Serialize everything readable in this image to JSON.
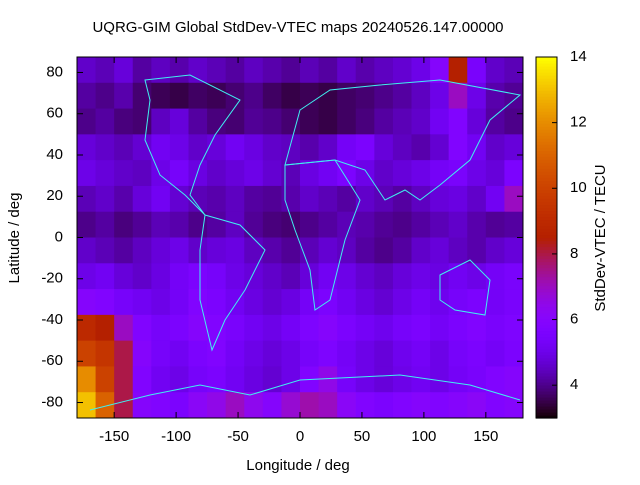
{
  "chart_data": {
    "type": "heatmap",
    "title": "UQRG-GIM Global StdDev-VTEC maps 20240526.147.00000",
    "xlabel": "Longitude / deg",
    "ylabel": "Latitude / deg",
    "zlabel": "StdDev-VTEC / TECU",
    "xlim": [
      -180,
      180
    ],
    "ylim": [
      -87.5,
      87.5
    ],
    "zlim": [
      3,
      14
    ],
    "xticks": [
      -150,
      -100,
      -50,
      0,
      50,
      100,
      150
    ],
    "yticks": [
      -80,
      -60,
      -40,
      -20,
      0,
      20,
      40,
      60,
      80
    ],
    "zticks": [
      4,
      6,
      8,
      10,
      12,
      14
    ],
    "x": [
      -172.5,
      -157.5,
      -142.5,
      -127.5,
      -112.5,
      -97.5,
      -82.5,
      -67.5,
      -52.5,
      -37.5,
      -22.5,
      -7.5,
      7.5,
      22.5,
      37.5,
      52.5,
      67.5,
      82.5,
      97.5,
      112.5,
      127.5,
      142.5,
      157.5,
      172.5
    ],
    "y": [
      81.25,
      68.75,
      56.25,
      43.75,
      31.25,
      18.75,
      6.25,
      -6.25,
      -18.75,
      -31.25,
      -43.75,
      -56.25,
      -68.75,
      -81.25
    ],
    "z": [
      [
        4.6,
        4.4,
        4.8,
        4.2,
        4.5,
        4.3,
        4.6,
        4.4,
        4.2,
        4.5,
        4.3,
        4.1,
        4.4,
        4.2,
        4.6,
        4.3,
        4.5,
        4.7,
        5.0,
        6.0,
        8.5,
        5.5,
        4.6,
        4.4
      ],
      [
        4.2,
        4.0,
        4.3,
        3.8,
        3.6,
        3.5,
        3.7,
        3.6,
        3.8,
        4.0,
        3.7,
        3.5,
        3.6,
        3.5,
        3.7,
        3.8,
        4.0,
        4.2,
        4.5,
        5.0,
        7.0,
        5.0,
        4.3,
        4.1
      ],
      [
        4.0,
        4.2,
        3.9,
        3.8,
        4.5,
        4.8,
        4.2,
        3.9,
        3.8,
        4.1,
        4.0,
        3.8,
        3.6,
        3.5,
        3.7,
        3.9,
        4.2,
        4.4,
        4.6,
        5.2,
        5.8,
        4.8,
        4.2,
        4.0
      ],
      [
        4.8,
        4.6,
        4.4,
        4.7,
        5.2,
        5.0,
        4.6,
        4.8,
        5.2,
        4.9,
        4.6,
        4.5,
        4.3,
        4.6,
        5.3,
        5.6,
        4.8,
        4.5,
        4.3,
        4.7,
        5.8,
        5.2,
        4.6,
        4.8
      ],
      [
        5.0,
        4.8,
        4.6,
        4.5,
        5.0,
        5.4,
        4.9,
        4.6,
        4.8,
        5.0,
        4.7,
        4.4,
        4.9,
        5.2,
        5.6,
        5.0,
        4.6,
        4.8,
        5.0,
        5.3,
        5.5,
        5.0,
        4.8,
        5.6
      ],
      [
        4.4,
        4.6,
        4.3,
        4.8,
        5.2,
        4.7,
        4.4,
        4.3,
        4.5,
        4.2,
        4.1,
        4.3,
        4.6,
        4.4,
        4.2,
        4.6,
        4.4,
        4.2,
        4.5,
        4.8,
        4.9,
        4.6,
        5.2,
        7.0
      ],
      [
        4.0,
        4.2,
        3.9,
        4.1,
        4.4,
        4.3,
        4.0,
        4.2,
        4.5,
        4.1,
        3.9,
        3.8,
        4.0,
        4.2,
        4.4,
        4.3,
        4.1,
        4.0,
        4.2,
        4.4,
        4.6,
        4.3,
        4.1,
        4.2
      ],
      [
        4.6,
        4.4,
        4.2,
        4.5,
        4.8,
        5.0,
        4.6,
        4.8,
        4.9,
        4.5,
        4.3,
        4.1,
        4.4,
        4.7,
        4.5,
        4.2,
        4.0,
        4.2,
        4.6,
        4.8,
        4.5,
        4.3,
        4.6,
        4.8
      ],
      [
        5.0,
        5.2,
        4.8,
        4.6,
        4.9,
        5.3,
        5.6,
        5.4,
        5.0,
        4.8,
        4.6,
        4.4,
        4.8,
        5.2,
        5.0,
        4.7,
        4.5,
        4.8,
        5.0,
        4.9,
        5.2,
        5.0,
        5.3,
        5.5
      ],
      [
        6.0,
        5.8,
        5.4,
        5.2,
        5.0,
        5.3,
        5.8,
        5.6,
        5.2,
        4.9,
        4.7,
        4.9,
        5.3,
        5.6,
        5.2,
        4.9,
        4.7,
        5.0,
        5.3,
        5.1,
        5.4,
        5.6,
        5.3,
        5.5
      ],
      [
        9.0,
        8.5,
        7.0,
        5.8,
        5.4,
        5.6,
        6.0,
        5.8,
        5.5,
        5.2,
        5.0,
        5.3,
        5.7,
        6.0,
        5.6,
        5.3,
        5.1,
        5.4,
        5.6,
        5.3,
        5.6,
        5.8,
        5.5,
        5.7
      ],
      [
        10.0,
        9.5,
        8.0,
        6.0,
        5.4,
        5.2,
        5.6,
        5.8,
        5.3,
        5.0,
        4.8,
        5.0,
        5.4,
        5.7,
        5.3,
        5.0,
        4.8,
        5.1,
        5.3,
        5.0,
        5.4,
        5.6,
        5.3,
        5.6
      ],
      [
        12.0,
        10.0,
        8.0,
        5.8,
        5.2,
        5.0,
        5.4,
        5.6,
        5.2,
        4.9,
        4.7,
        5.0,
        5.8,
        6.5,
        5.4,
        5.0,
        4.8,
        5.0,
        5.2,
        5.0,
        5.3,
        5.5,
        5.8,
        6.0
      ],
      [
        13.0,
        11.0,
        8.0,
        6.0,
        5.8,
        5.6,
        6.2,
        6.5,
        7.0,
        6.4,
        6.0,
        6.8,
        7.2,
        7.0,
        6.2,
        5.8,
        5.6,
        5.8,
        6.0,
        5.8,
        6.0,
        6.2,
        5.8,
        6.0
      ]
    ]
  }
}
